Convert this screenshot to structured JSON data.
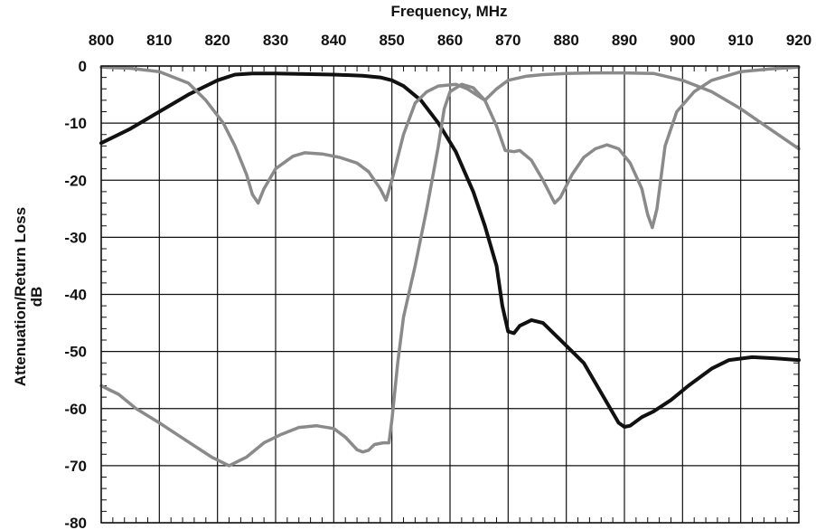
{
  "chart_data": {
    "type": "line",
    "xlabel": "Frequency, MHz",
    "ylabel_lines": [
      "Attenuation/Return Loss",
      "dB"
    ],
    "xlim": [
      800,
      920
    ],
    "ylim": [
      -80,
      0
    ],
    "x_ticks": [
      "800",
      "810",
      "820",
      "830",
      "840",
      "850",
      "860",
      "870",
      "880",
      "890",
      "900",
      "910",
      "920"
    ],
    "y_ticks": [
      "0",
      "-10",
      "-20",
      "-30",
      "-40",
      "-50",
      "-60",
      "-70",
      "-80"
    ],
    "x_axis_position": "top",
    "grid": true,
    "series": [
      {
        "color": "#111111",
        "points": [
          [
            800,
            -13.5
          ],
          [
            805,
            -11
          ],
          [
            810,
            -8
          ],
          [
            815,
            -5
          ],
          [
            820,
            -2.5
          ],
          [
            823,
            -1.5
          ],
          [
            826,
            -1.3
          ],
          [
            830,
            -1.3
          ],
          [
            840,
            -1.5
          ],
          [
            845,
            -1.7
          ],
          [
            848,
            -2
          ],
          [
            850,
            -2.5
          ],
          [
            852,
            -3.5
          ],
          [
            855,
            -6
          ],
          [
            858,
            -10
          ],
          [
            861,
            -15
          ],
          [
            864,
            -22
          ],
          [
            866,
            -28
          ],
          [
            868,
            -35
          ],
          [
            869,
            -42
          ],
          [
            870,
            -46.5
          ],
          [
            871,
            -46.8
          ],
          [
            872,
            -45.5
          ],
          [
            874,
            -44.5
          ],
          [
            876,
            -45
          ],
          [
            878,
            -47
          ],
          [
            880,
            -49
          ],
          [
            883,
            -52
          ],
          [
            885,
            -55.5
          ],
          [
            887,
            -59
          ],
          [
            889,
            -62.5
          ],
          [
            890,
            -63.2
          ],
          [
            891,
            -63
          ],
          [
            893,
            -61.5
          ],
          [
            895,
            -60.5
          ],
          [
            898,
            -58.5
          ],
          [
            901,
            -56
          ],
          [
            905,
            -53
          ],
          [
            908,
            -51.5
          ],
          [
            912,
            -51
          ],
          [
            916,
            -51.2
          ],
          [
            920,
            -51.5
          ]
        ]
      },
      {
        "color": "#8a8a8a",
        "points": [
          [
            800,
            -56
          ],
          [
            803,
            -57.5
          ],
          [
            806,
            -60
          ],
          [
            810,
            -62.5
          ],
          [
            813,
            -64.5
          ],
          [
            816,
            -66.5
          ],
          [
            819,
            -68.5
          ],
          [
            822,
            -70
          ],
          [
            825,
            -68.5
          ],
          [
            828,
            -66
          ],
          [
            831,
            -64.5
          ],
          [
            834,
            -63.3
          ],
          [
            837,
            -63
          ],
          [
            840,
            -63.5
          ],
          [
            842,
            -65
          ],
          [
            844,
            -67.2
          ],
          [
            845,
            -67.6
          ],
          [
            846,
            -67.3
          ],
          [
            847,
            -66.3
          ],
          [
            848.5,
            -66
          ],
          [
            849.5,
            -66
          ],
          [
            850,
            -62
          ],
          [
            851,
            -52
          ],
          [
            852,
            -44
          ],
          [
            854,
            -35
          ],
          [
            856,
            -25
          ],
          [
            858,
            -14
          ],
          [
            859,
            -7.5
          ],
          [
            860,
            -4.5
          ],
          [
            862,
            -3.2
          ],
          [
            864,
            -3.8
          ],
          [
            866,
            -6
          ],
          [
            868,
            -10.5
          ],
          [
            869.5,
            -14.8
          ],
          [
            871,
            -15
          ],
          [
            872,
            -14.8
          ],
          [
            874,
            -16.5
          ],
          [
            876,
            -20
          ],
          [
            878,
            -24
          ],
          [
            879,
            -23
          ],
          [
            881,
            -19
          ],
          [
            883,
            -16
          ],
          [
            885,
            -14.5
          ],
          [
            887,
            -13.8
          ],
          [
            889,
            -14.5
          ],
          [
            891,
            -17
          ],
          [
            893,
            -21.5
          ],
          [
            894,
            -26
          ],
          [
            894.8,
            -28.3
          ],
          [
            895.6,
            -25
          ],
          [
            897,
            -14
          ],
          [
            899,
            -8
          ],
          [
            902,
            -4.5
          ],
          [
            905,
            -2.5
          ],
          [
            910,
            -1
          ],
          [
            915,
            -0.5
          ],
          [
            920,
            -0.2
          ]
        ]
      },
      {
        "color": "#8a8a8a",
        "points": [
          [
            800,
            -0.2
          ],
          [
            805,
            -0.4
          ],
          [
            810,
            -1
          ],
          [
            815,
            -3
          ],
          [
            818,
            -6
          ],
          [
            821,
            -10
          ],
          [
            823,
            -14
          ],
          [
            825,
            -19
          ],
          [
            826,
            -22.5
          ],
          [
            827,
            -24
          ],
          [
            828,
            -21.5
          ],
          [
            830,
            -18
          ],
          [
            833,
            -15.8
          ],
          [
            835,
            -15.2
          ],
          [
            838,
            -15.4
          ],
          [
            841,
            -16
          ],
          [
            844,
            -17
          ],
          [
            846,
            -18.5
          ],
          [
            848,
            -21.5
          ],
          [
            849,
            -23.5
          ],
          [
            850,
            -20
          ],
          [
            852,
            -12
          ],
          [
            854,
            -6.5
          ],
          [
            856,
            -4.5
          ],
          [
            858,
            -3.5
          ],
          [
            861,
            -3.2
          ],
          [
            863,
            -4
          ],
          [
            866,
            -6
          ],
          [
            868,
            -4
          ],
          [
            870,
            -2.5
          ],
          [
            873,
            -1.8
          ],
          [
            876,
            -1.5
          ],
          [
            880,
            -1.3
          ],
          [
            885,
            -1.2
          ],
          [
            890,
            -1.2
          ],
          [
            895,
            -1.3
          ],
          [
            900,
            -2.5
          ],
          [
            905,
            -4.5
          ],
          [
            910,
            -7.5
          ],
          [
            915,
            -11
          ],
          [
            920,
            -14.5
          ]
        ]
      }
    ]
  }
}
